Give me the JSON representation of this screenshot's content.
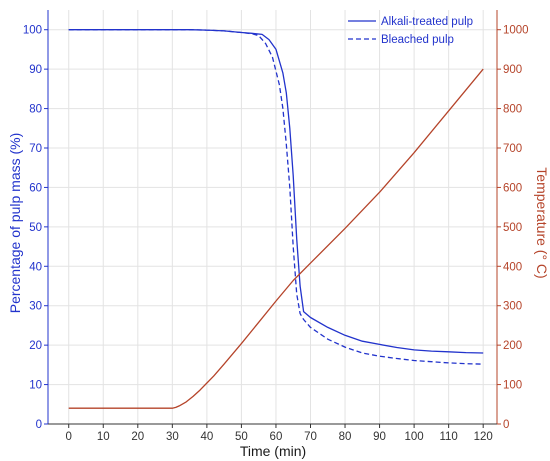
{
  "chart_data": {
    "type": "line",
    "xlabel": "Time (min)",
    "ylabel_left": "Percentage of pulp mass (%)",
    "ylabel_right": "Temperature (° C)",
    "xlim": [
      -6,
      124
    ],
    "ylim_left": [
      0,
      105
    ],
    "ylim_right": [
      0,
      1050
    ],
    "x_ticks": [
      0,
      10,
      20,
      30,
      40,
      50,
      60,
      70,
      80,
      90,
      100,
      110,
      120
    ],
    "y_ticks_left": [
      0,
      10,
      20,
      30,
      40,
      50,
      60,
      70,
      80,
      90,
      100
    ],
    "y_ticks_right": [
      0,
      100,
      200,
      300,
      400,
      500,
      600,
      700,
      800,
      900,
      1000
    ],
    "grid": true,
    "legend_position": "top-right",
    "colors": {
      "mass": "#2233cc",
      "temperature": "#b5442a",
      "grid": "#e3e3e3"
    },
    "series": [
      {
        "name": "Alkali-treated pulp",
        "axis": "left",
        "line_style": "solid",
        "x": [
          0,
          10,
          20,
          30,
          35,
          40,
          45,
          50,
          53,
          56,
          58,
          60,
          62,
          63,
          64,
          65,
          66,
          67,
          68,
          70,
          75,
          80,
          85,
          90,
          95,
          100,
          105,
          110,
          115,
          120
        ],
        "y": [
          100,
          100,
          100,
          100,
          100,
          99.9,
          99.7,
          99.3,
          99.1,
          98.8,
          97.5,
          95,
          89,
          84,
          75,
          63,
          47,
          35,
          28.5,
          27,
          24.5,
          22.5,
          21,
          20.2,
          19.4,
          18.8,
          18.5,
          18.3,
          18.1,
          18
        ]
      },
      {
        "name": "Bleached pulp",
        "axis": "left",
        "line_style": "dashed",
        "x": [
          0,
          10,
          20,
          30,
          35,
          40,
          45,
          50,
          53,
          55,
          57,
          59,
          61,
          62,
          63,
          64,
          65,
          66,
          67,
          68,
          70,
          75,
          80,
          85,
          90,
          95,
          100,
          105,
          110,
          115,
          120
        ],
        "y": [
          100,
          100,
          100,
          100,
          100,
          99.9,
          99.7,
          99.3,
          99,
          98.5,
          96.5,
          93,
          86,
          80,
          71,
          60,
          45,
          33,
          28,
          26.5,
          24.5,
          21.5,
          19.5,
          18,
          17.2,
          16.6,
          16.1,
          15.8,
          15.5,
          15.3,
          15.2
        ]
      },
      {
        "name": "",
        "axis": "right",
        "line_style": "solid",
        "x": [
          0,
          10,
          20,
          30,
          31,
          32,
          34,
          36,
          38,
          40,
          42,
          45,
          50,
          55,
          60,
          65,
          70,
          80,
          90,
          100,
          110,
          120
        ],
        "y": [
          40,
          40,
          40,
          40,
          42,
          46,
          56,
          70,
          86,
          104,
          122,
          152,
          204,
          258,
          312,
          364,
          408,
          496,
          588,
          688,
          794,
          900
        ]
      }
    ]
  }
}
